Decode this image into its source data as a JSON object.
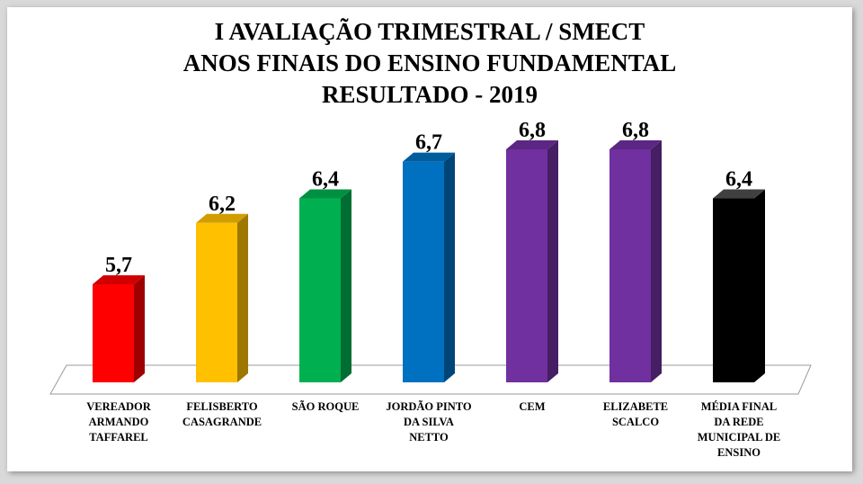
{
  "chart_data": {
    "type": "bar",
    "title_lines": [
      "I AVALIAÇÃO TRIMESTRAL / SMECT",
      "ANOS FINAIS DO ENSINO FUNDAMENTAL",
      "RESULTADO - 2019"
    ],
    "categories": [
      [
        "VEREADOR",
        "ARMANDO",
        "TAFFAREL"
      ],
      [
        "FELISBERTO",
        "CASAGRANDE"
      ],
      [
        "SÃO ROQUE"
      ],
      [
        "JORDÃO PINTO",
        "DA SILVA",
        "NETTO"
      ],
      [
        "CEM"
      ],
      [
        "ELIZABETE",
        "SCALCO"
      ],
      [
        "MÉDIA FINAL",
        "DA REDE",
        "MUNICIPAL DE",
        "ENSINO"
      ]
    ],
    "values": [
      5.7,
      6.2,
      6.4,
      6.7,
      6.8,
      6.8,
      6.4
    ],
    "value_labels": [
      "5,7",
      "6,2",
      "6,4",
      "6,7",
      "6,8",
      "6,8",
      "6,4"
    ],
    "colors": [
      "#ff0000",
      "#ffc000",
      "#00b050",
      "#0070c0",
      "#7030a0",
      "#7030a0",
      "#000000"
    ],
    "xlabel": "",
    "ylabel": "",
    "ylim": [
      4.9,
      6.8
    ],
    "grid": false,
    "legend": "none",
    "style": "3d-column"
  }
}
